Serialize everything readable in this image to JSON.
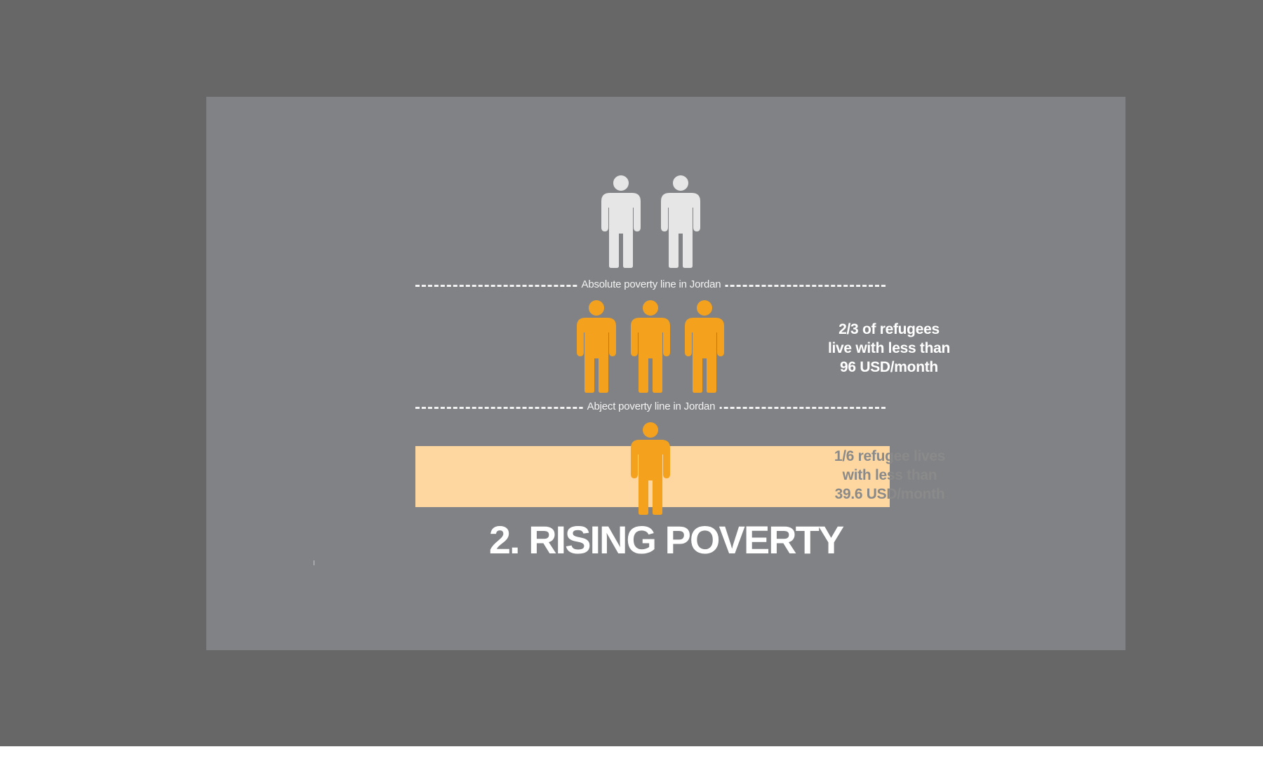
{
  "slide": {
    "title": "2. RISING POVERTY"
  },
  "poverty_lines": {
    "absolute_label": "Absolute poverty line in Jordan",
    "abject_label": "Abject poverty line in Jordan"
  },
  "stats": {
    "between_lines": [
      "2/3 of refugees",
      "live with less than",
      "96 USD/month"
    ],
    "below_abject": [
      "1/6 refugee lives",
      "with less than",
      "39.6 USD/month"
    ]
  },
  "figures": {
    "above_absolute_count": 2,
    "between_lines_count": 3,
    "below_abject_count": 1
  },
  "colors": {
    "background_outer": "#676767",
    "slide_background": "#818285",
    "figure_above_line": "#e6e6e6",
    "figure_below_line": "#f4a21d",
    "abject_band": "#fed7a0",
    "title_text": "#ffffff",
    "between_lines_text": "#ffffff",
    "below_abject_text": "#8a8a8a",
    "line_color": "#f2f2f2"
  },
  "icons": {
    "person": "person-icon"
  }
}
